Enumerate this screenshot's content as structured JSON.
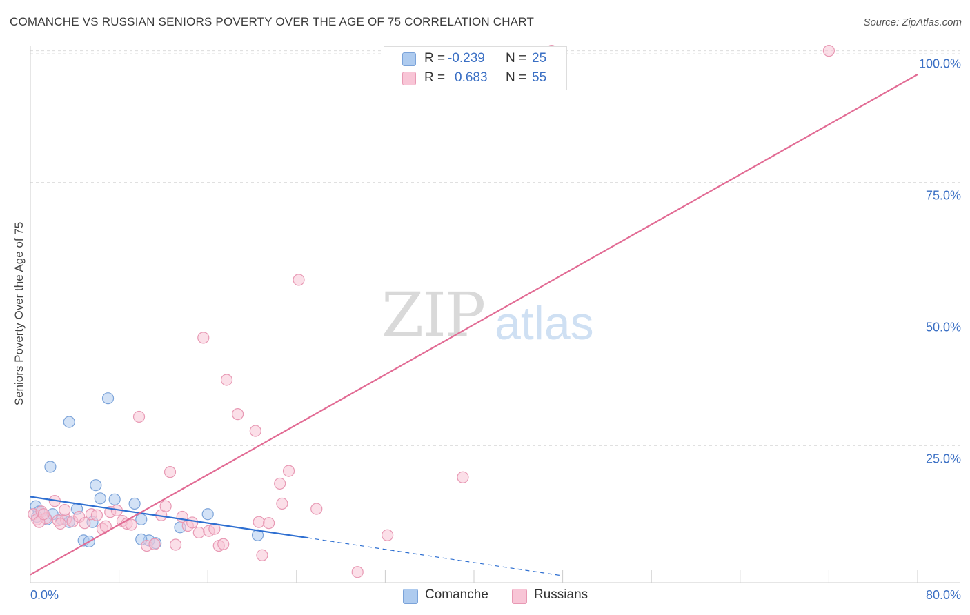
{
  "header": {
    "title": "COMANCHE VS RUSSIAN SENIORS POVERTY OVER THE AGE OF 75 CORRELATION CHART",
    "source": "Source: ZipAtlas.com"
  },
  "watermark": {
    "zip": "ZIP",
    "atlas": "atlas"
  },
  "legend": {
    "rows": [
      {
        "r_label": "R =",
        "r_value": "-0.239",
        "n_label": "N =",
        "n_value": "25",
        "color": "#aecbef",
        "border": "#7ba3d9"
      },
      {
        "r_label": "R =",
        "r_value": "0.683",
        "n_label": "N =",
        "n_value": "55",
        "color": "#f8c5d6",
        "border": "#e899b4"
      }
    ]
  },
  "bottom_legend": [
    {
      "label": "Comanche",
      "color": "#aecbef",
      "border": "#7ba3d9"
    },
    {
      "label": "Russians",
      "color": "#f8c5d6",
      "border": "#e899b4"
    }
  ],
  "chart_data": {
    "type": "scatter",
    "title": "COMANCHE VS RUSSIAN SENIORS POVERTY OVER THE AGE OF 75 CORRELATION CHART",
    "xlabel": "",
    "ylabel": "Seniors Poverty Over the Age of 75",
    "xlim": [
      0,
      80
    ],
    "ylim": [
      -1,
      101
    ],
    "x_tick_labels": [
      "0.0%",
      "80.0%"
    ],
    "y_ticks": [
      25,
      50,
      75,
      100
    ],
    "y_tick_labels": [
      "25.0%",
      "50.0%",
      "75.0%",
      "100.0%"
    ],
    "grid": true,
    "series": [
      {
        "name": "Comanche",
        "color": "#7ba3d9",
        "fill": "#aecbef",
        "points": [
          [
            0.5,
            13.5
          ],
          [
            0.8,
            12.5
          ],
          [
            1.5,
            11.0
          ],
          [
            2.0,
            12.0
          ],
          [
            2.8,
            11.0
          ],
          [
            3.5,
            10.5
          ],
          [
            4.2,
            13.0
          ],
          [
            4.8,
            7.0
          ],
          [
            5.3,
            6.8
          ],
          [
            5.6,
            10.5
          ],
          [
            5.9,
            17.5
          ],
          [
            6.3,
            15.0
          ],
          [
            7.0,
            34.0
          ],
          [
            7.6,
            14.8
          ],
          [
            9.4,
            14.0
          ],
          [
            10.0,
            11.0
          ],
          [
            10.7,
            7.0
          ],
          [
            11.3,
            6.5
          ],
          [
            13.5,
            9.5
          ],
          [
            16.0,
            12.0
          ],
          [
            20.5,
            8.0
          ],
          [
            1.8,
            21.0
          ],
          [
            3.5,
            29.5
          ],
          [
            10.0,
            7.2
          ],
          [
            0.6,
            11.5
          ]
        ],
        "trend": {
          "x0": 0,
          "y0": 15.3,
          "x1": 25,
          "y1": 7.5,
          "dashed_x1": 48,
          "dashed_y1": 0.3,
          "color": "#2e6fd1"
        }
      },
      {
        "name": "Russians",
        "color": "#e899b4",
        "fill": "#f8c5d6",
        "points": [
          [
            0.3,
            12.0
          ],
          [
            0.6,
            11.0
          ],
          [
            1.0,
            12.5
          ],
          [
            1.4,
            11.2
          ],
          [
            2.2,
            14.5
          ],
          [
            2.5,
            10.8
          ],
          [
            3.2,
            11.0
          ],
          [
            3.8,
            10.6
          ],
          [
            4.4,
            11.5
          ],
          [
            4.9,
            10.3
          ],
          [
            5.5,
            12.0
          ],
          [
            6.0,
            11.8
          ],
          [
            6.5,
            9.2
          ],
          [
            6.8,
            9.7
          ],
          [
            7.2,
            12.4
          ],
          [
            7.8,
            12.7
          ],
          [
            8.3,
            10.7
          ],
          [
            8.7,
            10.2
          ],
          [
            9.1,
            10.0
          ],
          [
            9.8,
            30.5
          ],
          [
            10.5,
            6.0
          ],
          [
            11.2,
            6.3
          ],
          [
            11.8,
            11.8
          ],
          [
            12.2,
            13.5
          ],
          [
            12.6,
            20.0
          ],
          [
            13.1,
            6.2
          ],
          [
            13.7,
            11.5
          ],
          [
            14.2,
            9.8
          ],
          [
            14.6,
            10.4
          ],
          [
            15.2,
            8.5
          ],
          [
            15.6,
            45.5
          ],
          [
            16.1,
            8.8
          ],
          [
            16.6,
            9.2
          ],
          [
            17.0,
            6.0
          ],
          [
            17.4,
            6.3
          ],
          [
            17.7,
            37.5
          ],
          [
            18.7,
            31.0
          ],
          [
            20.3,
            27.8
          ],
          [
            20.6,
            10.5
          ],
          [
            20.9,
            4.2
          ],
          [
            21.5,
            10.3
          ],
          [
            22.5,
            17.8
          ],
          [
            22.7,
            14.0
          ],
          [
            23.3,
            20.2
          ],
          [
            24.2,
            56.5
          ],
          [
            25.8,
            13.0
          ],
          [
            29.5,
            1.0
          ],
          [
            32.2,
            8.0
          ],
          [
            39.0,
            19.0
          ],
          [
            47.0,
            100.0
          ],
          [
            72.0,
            100.0
          ],
          [
            0.8,
            10.5
          ],
          [
            1.2,
            12.0
          ],
          [
            2.7,
            10.2
          ],
          [
            3.1,
            12.8
          ]
        ],
        "trend": {
          "x0": 0,
          "y0": 0.5,
          "x1": 80,
          "y1": 95.5,
          "color": "#e26b94"
        }
      }
    ]
  }
}
